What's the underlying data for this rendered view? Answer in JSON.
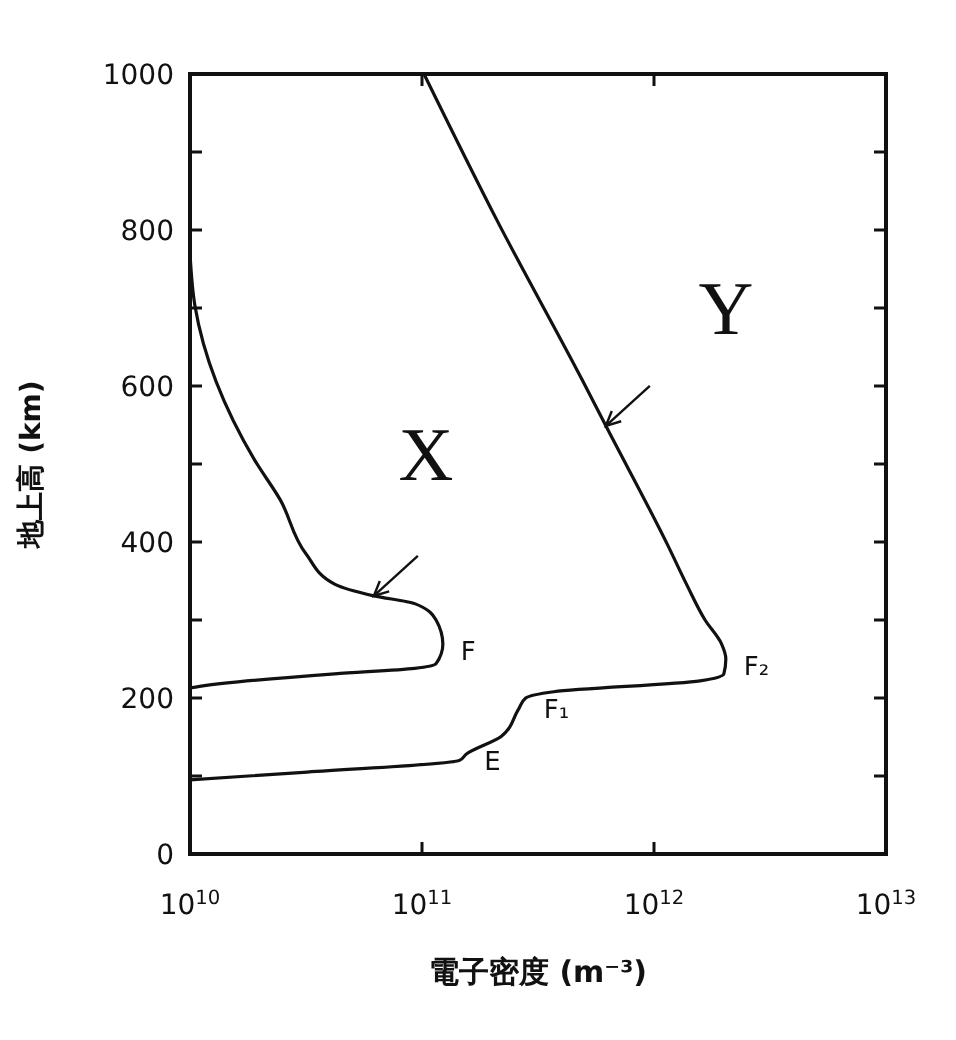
{
  "chart_data": {
    "type": "line",
    "xlabel": "電子密度 (m⁻³)",
    "ylabel": "地上高 (km)",
    "log": "x",
    "xlim": [
      10000000000.0,
      10000000000000.0
    ],
    "xticks": [
      {
        "value": 10000000000.0,
        "label": "10$^{10}$"
      },
      {
        "value": 100000000000.0,
        "label": "10$^{11}$"
      },
      {
        "value": 1000000000000.0,
        "label": "10$^{12}$"
      },
      {
        "value": 10000000000000.0,
        "label": "10$^{13}$"
      }
    ],
    "ylim": [
      0,
      1000
    ],
    "yticks": [
      0,
      {
        "value": 100,
        "label": null
      },
      200,
      {
        "value": 300,
        "label": null
      },
      400,
      {
        "value": 500,
        "label": null
      },
      600,
      {
        "value": 700,
        "label": null
      },
      800,
      {
        "value": 900,
        "label": null
      },
      1000
    ],
    "grid": false,
    "legend": "top right",
    "marker": "none",
    "line_style": "solid",
    "series": [
      {
        "name": "X",
        "color": "#111111",
        "x": [
          10000000000.0,
          10500000000.0,
          19000000000.0,
          24500000000.0,
          31600000000.0,
          42000000000.0,
          62000000000.0,
          93000000000.0,
          115000000000.0,
          123000000000.0,
          115000000000.0,
          93000000000.0,
          42000000000.0,
          11000000000.0,
          10000000000.0
        ],
        "values": [
          770,
          703,
          505,
          454,
          385,
          346,
          331,
          321,
          300,
          269,
          244,
          238,
          231,
          215,
          213
        ]
      },
      {
        "name": "Y",
        "color": "#111111",
        "x": [
          102000000000.0,
          210000000000.0,
          490000000000.0,
          620000000000.0,
          1150000000000.0,
          1380000000000.0,
          1660000000000.0,
          1950000000000.0,
          2040000000000.0,
          2000000000000.0,
          1580000000000.0,
          370000000000.0,
          280000000000.0,
          260000000000.0,
          220000000000.0,
          155000000000.0,
          145000000000.0,
          32000000000.0,
          10000000000.0
        ],
        "values": [
          1000,
          813,
          608,
          549,
          395,
          346,
          300,
          270,
          250,
          231,
          222,
          208,
          200,
          185,
          151,
          128,
          120,
          105,
          95
        ]
      }
    ],
    "annotations": [
      {
        "text": "F",
        "x": 123000000000.0,
        "y": 269
      },
      {
        "text": "F₂",
        "x": 2040000000000.0,
        "y": 250
      },
      {
        "text": "F₁",
        "x": 280000000000.0,
        "y": 195
      },
      {
        "text": "E",
        "x": 155000000000.0,
        "y": 128
      }
    ]
  }
}
